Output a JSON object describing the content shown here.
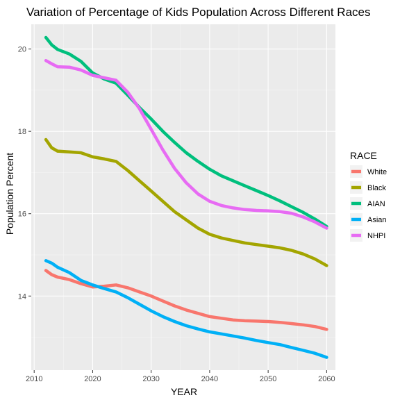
{
  "chart_data": {
    "type": "line",
    "title": "Variation of Percentage of Kids Population Across Different Races",
    "xlabel": "YEAR",
    "ylabel": "Population Percent",
    "xlim": [
      2009.5,
      2061.5
    ],
    "ylim": [
      12.2,
      20.6
    ],
    "xticks": [
      2010,
      2020,
      2030,
      2040,
      2050,
      2060
    ],
    "yticks": [
      14,
      16,
      18,
      20
    ],
    "grid": true,
    "legend": {
      "title": "RACE",
      "position": "right"
    },
    "series": [
      {
        "name": "White",
        "color": "#F8766D",
        "points": [
          [
            2012,
            14.62
          ],
          [
            2013,
            14.52
          ],
          [
            2014,
            14.46
          ],
          [
            2016,
            14.4
          ],
          [
            2018,
            14.3
          ],
          [
            2020,
            14.22
          ],
          [
            2022,
            14.24
          ],
          [
            2024,
            14.27
          ],
          [
            2026,
            14.2
          ],
          [
            2028,
            14.1
          ],
          [
            2030,
            14.0
          ],
          [
            2032,
            13.88
          ],
          [
            2034,
            13.76
          ],
          [
            2036,
            13.66
          ],
          [
            2038,
            13.58
          ],
          [
            2040,
            13.5
          ],
          [
            2042,
            13.46
          ],
          [
            2044,
            13.42
          ],
          [
            2046,
            13.4
          ],
          [
            2048,
            13.39
          ],
          [
            2050,
            13.38
          ],
          [
            2052,
            13.36
          ],
          [
            2054,
            13.33
          ],
          [
            2056,
            13.3
          ],
          [
            2058,
            13.26
          ],
          [
            2060,
            13.19
          ]
        ]
      },
      {
        "name": "Black",
        "color": "#A3A500",
        "points": [
          [
            2012,
            17.8
          ],
          [
            2013,
            17.6
          ],
          [
            2014,
            17.52
          ],
          [
            2016,
            17.5
          ],
          [
            2018,
            17.48
          ],
          [
            2020,
            17.38
          ],
          [
            2022,
            17.33
          ],
          [
            2024,
            17.27
          ],
          [
            2026,
            17.05
          ],
          [
            2028,
            16.8
          ],
          [
            2030,
            16.55
          ],
          [
            2032,
            16.3
          ],
          [
            2034,
            16.05
          ],
          [
            2036,
            15.85
          ],
          [
            2038,
            15.65
          ],
          [
            2040,
            15.5
          ],
          [
            2042,
            15.41
          ],
          [
            2044,
            15.35
          ],
          [
            2046,
            15.29
          ],
          [
            2048,
            15.25
          ],
          [
            2050,
            15.21
          ],
          [
            2052,
            15.17
          ],
          [
            2054,
            15.11
          ],
          [
            2056,
            15.02
          ],
          [
            2058,
            14.9
          ],
          [
            2060,
            14.74
          ]
        ]
      },
      {
        "name": "AIAN",
        "color": "#00BF7D",
        "points": [
          [
            2012,
            20.28
          ],
          [
            2013,
            20.1
          ],
          [
            2014,
            19.99
          ],
          [
            2016,
            19.88
          ],
          [
            2018,
            19.7
          ],
          [
            2020,
            19.42
          ],
          [
            2022,
            19.27
          ],
          [
            2024,
            19.17
          ],
          [
            2026,
            18.88
          ],
          [
            2028,
            18.58
          ],
          [
            2030,
            18.3
          ],
          [
            2032,
            18.0
          ],
          [
            2034,
            17.73
          ],
          [
            2036,
            17.48
          ],
          [
            2038,
            17.27
          ],
          [
            2040,
            17.08
          ],
          [
            2042,
            16.92
          ],
          [
            2044,
            16.8
          ],
          [
            2046,
            16.68
          ],
          [
            2048,
            16.56
          ],
          [
            2050,
            16.44
          ],
          [
            2052,
            16.31
          ],
          [
            2054,
            16.17
          ],
          [
            2056,
            16.03
          ],
          [
            2058,
            15.87
          ],
          [
            2060,
            15.69
          ]
        ]
      },
      {
        "name": "Asian",
        "color": "#00B0F6",
        "points": [
          [
            2012,
            14.86
          ],
          [
            2013,
            14.8
          ],
          [
            2014,
            14.7
          ],
          [
            2016,
            14.57
          ],
          [
            2018,
            14.38
          ],
          [
            2020,
            14.27
          ],
          [
            2022,
            14.18
          ],
          [
            2024,
            14.1
          ],
          [
            2026,
            13.96
          ],
          [
            2028,
            13.8
          ],
          [
            2030,
            13.64
          ],
          [
            2032,
            13.5
          ],
          [
            2034,
            13.38
          ],
          [
            2036,
            13.28
          ],
          [
            2038,
            13.2
          ],
          [
            2040,
            13.13
          ],
          [
            2042,
            13.08
          ],
          [
            2044,
            13.03
          ],
          [
            2046,
            12.98
          ],
          [
            2048,
            12.92
          ],
          [
            2050,
            12.87
          ],
          [
            2052,
            12.82
          ],
          [
            2054,
            12.75
          ],
          [
            2056,
            12.68
          ],
          [
            2058,
            12.61
          ],
          [
            2060,
            12.51
          ]
        ]
      },
      {
        "name": "NHPI",
        "color": "#E76BF3",
        "points": [
          [
            2012,
            19.72
          ],
          [
            2013,
            19.64
          ],
          [
            2014,
            19.57
          ],
          [
            2016,
            19.56
          ],
          [
            2018,
            19.49
          ],
          [
            2020,
            19.36
          ],
          [
            2022,
            19.3
          ],
          [
            2024,
            19.24
          ],
          [
            2026,
            18.95
          ],
          [
            2028,
            18.55
          ],
          [
            2030,
            18.05
          ],
          [
            2032,
            17.55
          ],
          [
            2034,
            17.1
          ],
          [
            2036,
            16.75
          ],
          [
            2038,
            16.48
          ],
          [
            2040,
            16.3
          ],
          [
            2042,
            16.2
          ],
          [
            2044,
            16.14
          ],
          [
            2046,
            16.1
          ],
          [
            2048,
            16.08
          ],
          [
            2050,
            16.07
          ],
          [
            2052,
            16.05
          ],
          [
            2054,
            16.01
          ],
          [
            2056,
            15.92
          ],
          [
            2058,
            15.8
          ],
          [
            2060,
            15.65
          ]
        ]
      }
    ]
  }
}
